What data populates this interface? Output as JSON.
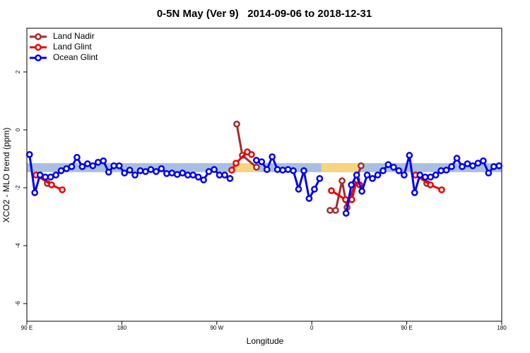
{
  "chart_data": {
    "type": "line",
    "title": "0-5N May (Ver 9)   2014-09-06 to 2018-12-31",
    "x_label": "Longitude",
    "y_label": "XCO2 - MLO trend (ppm)",
    "xlim": [
      90,
      540
    ],
    "xticks": [
      {
        "value": 90,
        "label": "90 E"
      },
      180,
      {
        "value": 270,
        "label": "90 W"
      },
      {
        "value": 360,
        "label": "0"
      },
      {
        "value": 450,
        "label": "90 E"
      },
      {
        "value": 540,
        "label": "180"
      }
    ],
    "ylim": [
      -6.61,
      3.51
    ],
    "yticks": [
      -6,
      -4,
      -2,
      0,
      2
    ],
    "legend": "top-left",
    "band": {
      "range": [
        -1.46,
        -1.15
      ],
      "color": "#a8bfe0",
      "highlights": [
        [
          285.5,
          309
        ],
        [
          369,
          406
        ]
      ],
      "highlight_color": "#f7d57e"
    },
    "series": [
      {
        "name": "Land Nadir",
        "color": "#a52a2a",
        "x": [
          109.4,
          null,
          288.9,
          294.2,
          307.6,
          null,
          377.3,
          382.6,
          388.7,
          393.4,
          406.7,
          null,
          469
        ],
        "values": [
          -1.85,
          null,
          0.2,
          -0.88,
          -1.29,
          null,
          -2.78,
          -2.78,
          -1.76,
          -2.68,
          -1.24,
          null,
          -1.85
        ]
      },
      {
        "name": "Land Glint",
        "color": "#ee0000",
        "x": [
          98.7,
          113.4,
          123.5,
          null,
          284.2,
          288.2,
          298.9,
          302.9,
          null,
          378.6,
          392,
          398,
          402.7,
          405.4,
          null,
          458.3,
          472.4,
          483.1
        ],
        "values": [
          -1.56,
          -1.9,
          -2.07,
          null,
          -1.39,
          -1.15,
          -0.76,
          -0.85,
          null,
          -2.1,
          -2.41,
          -2.41,
          -1.73,
          -1.9,
          null,
          -1.56,
          -1.9,
          -2.07
        ]
      },
      {
        "name": "Ocean Glint",
        "color": "#0000ee",
        "x": [
          92.5,
          97.5,
          102.5,
          107.5,
          112.5,
          117.5,
          122.5,
          127.5,
          132.5,
          137.5,
          142.5,
          147.5,
          152.5,
          157.5,
          162.5,
          167.5,
          172.5,
          177.5,
          182.5,
          187.5,
          192.5,
          197.5,
          202.5,
          207.5,
          212.5,
          217.5,
          222.5,
          227.5,
          232.5,
          237.5,
          242.5,
          247.5,
          252.5,
          257.5,
          262.5,
          267.5,
          272.5,
          277.5,
          282.5,
          287.5,
          292.5,
          297.5,
          302.5,
          307.5,
          312.5,
          317.5,
          322.5,
          327.5,
          332.5,
          337.5,
          342.5,
          347.5,
          352.5,
          357.5,
          362.5,
          367.5,
          372.5,
          377.5,
          382.5,
          387.5,
          392.5,
          397.5,
          402.5,
          407.5,
          412.5,
          417.5,
          422.5,
          427.5,
          432.5,
          437.5,
          442.5,
          447.5,
          452.5,
          457.5,
          462.5,
          467.5,
          472.5,
          477.5,
          482.5,
          487.5,
          492.5,
          497.5,
          502.5,
          507.5,
          512.5,
          517.5,
          522.5,
          527.5,
          532.5,
          537.5
        ],
        "values": [
          -0.85,
          -2.17,
          -1.56,
          -1.63,
          -1.63,
          -1.56,
          -1.41,
          -1.34,
          -1.27,
          -0.95,
          -1.27,
          -1.17,
          -1.24,
          -1.12,
          -1.07,
          -1.46,
          -1.24,
          -1.24,
          -1.49,
          -1.39,
          -1.56,
          -1.41,
          -1.44,
          -1.37,
          -1.44,
          -1.34,
          -1.51,
          -1.49,
          -1.54,
          -1.49,
          -1.56,
          -1.56,
          -1.63,
          -1.73,
          -1.44,
          -1.37,
          -1.56,
          -1.56,
          -1.68,
          null,
          null,
          null,
          null,
          -1.05,
          -1.1,
          -1.37,
          -0.93,
          -1.37,
          -1.39,
          -1.37,
          -1.41,
          -2.05,
          -1.41,
          -2.37,
          -2.05,
          -1.68,
          null,
          null,
          null,
          null,
          -2.88,
          -1.9,
          -1.56,
          -2.12,
          -1.56,
          -1.68,
          -1.56,
          -1.41,
          -1.2,
          -1.29,
          -1.41,
          -1.56,
          -0.88,
          -2.17,
          -1.56,
          -1.63,
          -1.63,
          -1.56,
          -1.41,
          -1.39,
          -1.27,
          -0.98,
          -1.27,
          -1.17,
          -1.24,
          -1.15,
          -1.07,
          -1.49,
          -1.27,
          -1.24
        ]
      }
    ]
  }
}
